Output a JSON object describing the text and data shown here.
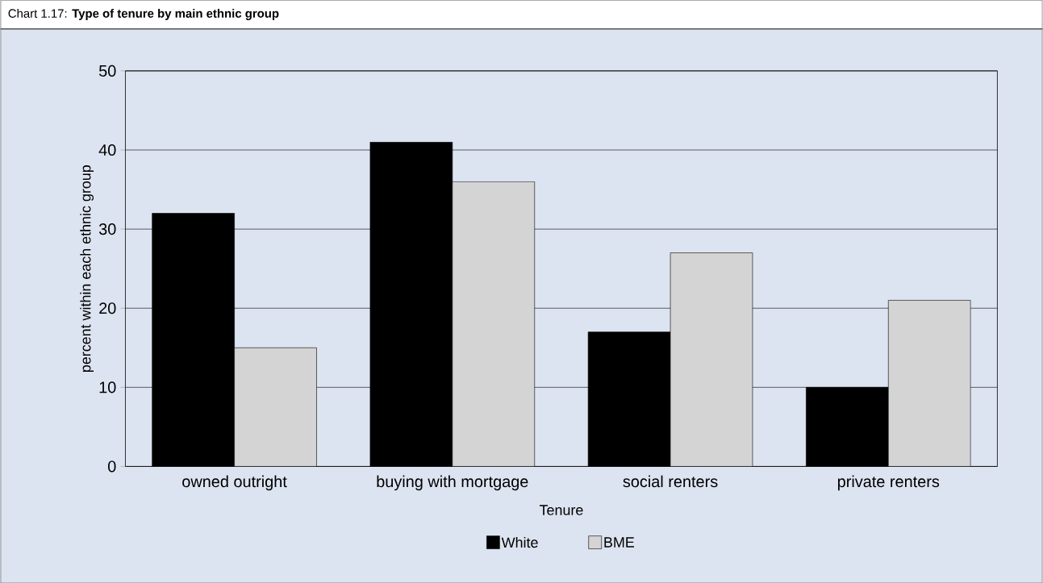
{
  "chart_data": {
    "type": "bar",
    "title": "Chart 1.17: **Type of tenure by main ethnic group**",
    "xlabel": "Tenure",
    "ylabel": "percent within each ethnic group",
    "categories": [
      "owned outright",
      "buying with mortgage",
      "social renters",
      "private renters"
    ],
    "series": [
      {
        "name": "White",
        "color": "#000000",
        "values": [
          32,
          41,
          17,
          10
        ]
      },
      {
        "name": "BME",
        "color": "#d4d4d4",
        "values": [
          15,
          36,
          27,
          21
        ]
      }
    ],
    "ylim": [
      0,
      50
    ],
    "yticks": [
      0,
      10,
      20,
      30,
      40,
      50
    ],
    "grid": "y",
    "legend": "bottom"
  }
}
